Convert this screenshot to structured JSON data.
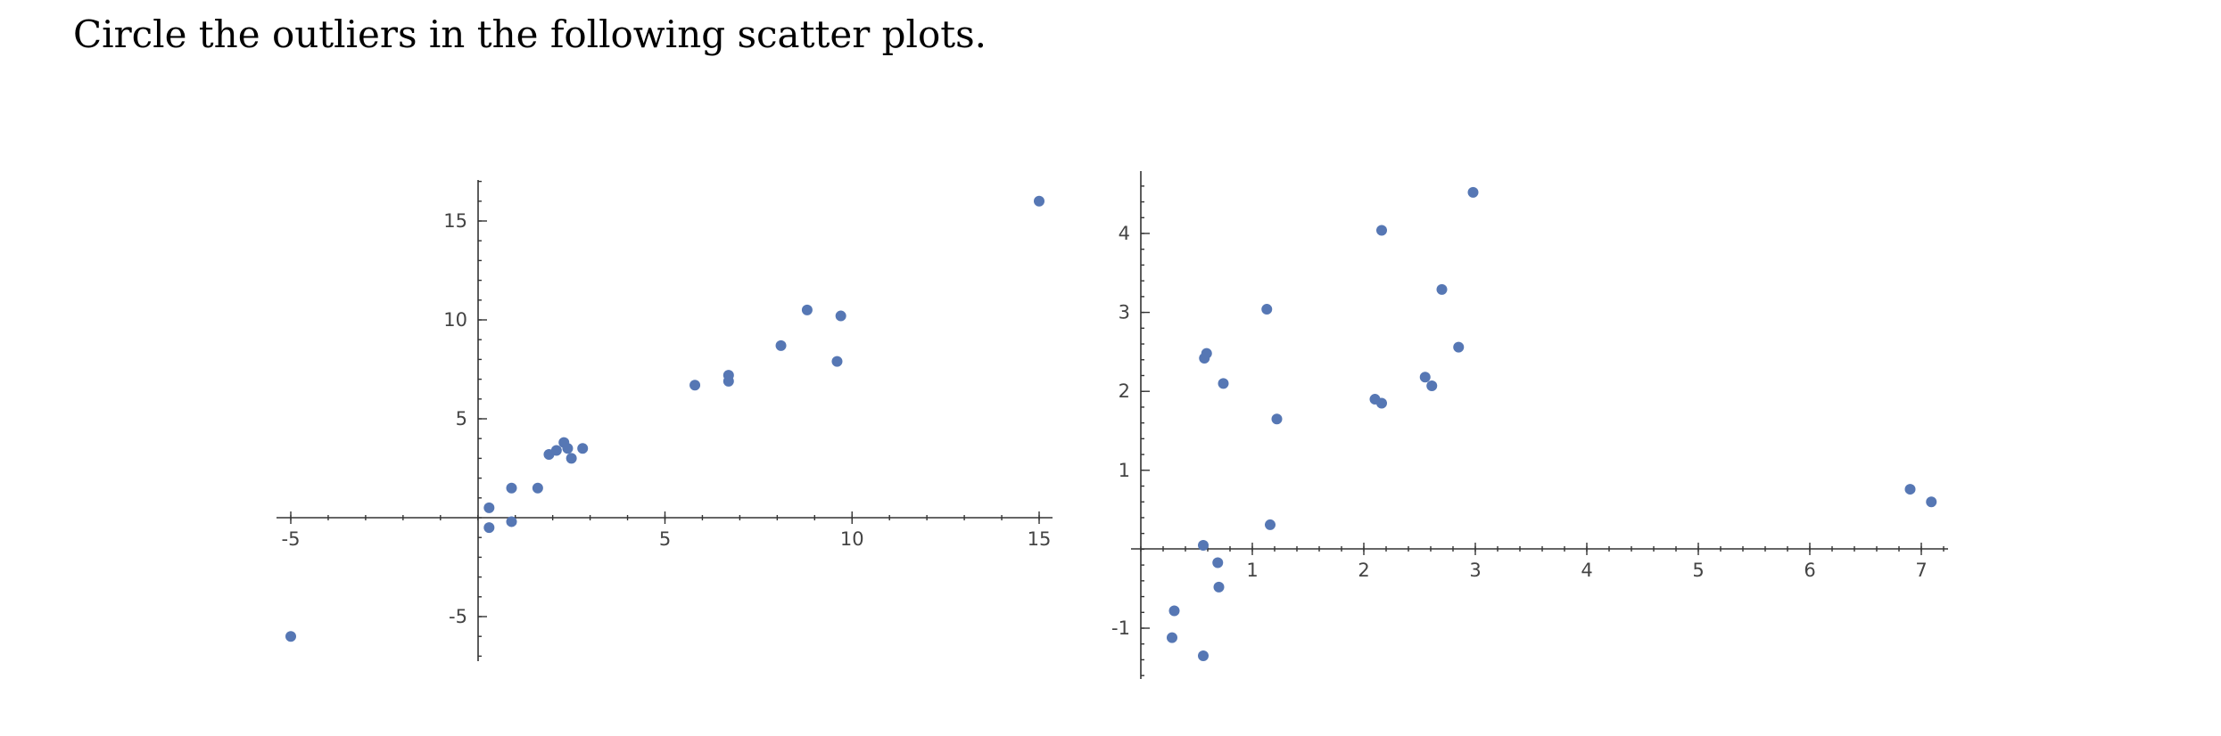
{
  "instruction": "Circle the outliers in the following scatter plots.",
  "colors": {
    "point": "#5677b4",
    "axis": "#333333",
    "label": "#444444"
  },
  "chart_data": [
    {
      "type": "scatter",
      "title": "",
      "xlabel": "",
      "ylabel": "",
      "xlim": [
        -5.2,
        15.4
      ],
      "ylim": [
        -7.2,
        17
      ],
      "xticks": [
        -5,
        5,
        10,
        15
      ],
      "yticks": [
        -5,
        5,
        10,
        15
      ],
      "xtick_labels": [
        "-5",
        "5",
        "10",
        "15"
      ],
      "ytick_labels": [
        "-5",
        "5",
        "10",
        "15"
      ],
      "grid": false,
      "points": [
        {
          "x": -5.0,
          "y": -6.0
        },
        {
          "x": 0.3,
          "y": 0.5
        },
        {
          "x": 0.3,
          "y": -0.5
        },
        {
          "x": 0.9,
          "y": 1.5
        },
        {
          "x": 0.9,
          "y": -0.2
        },
        {
          "x": 1.6,
          "y": 1.5
        },
        {
          "x": 1.9,
          "y": 3.2
        },
        {
          "x": 2.1,
          "y": 3.4
        },
        {
          "x": 2.3,
          "y": 3.8
        },
        {
          "x": 2.4,
          "y": 3.5
        },
        {
          "x": 2.5,
          "y": 3.0
        },
        {
          "x": 2.8,
          "y": 3.5
        },
        {
          "x": 5.8,
          "y": 6.7
        },
        {
          "x": 6.7,
          "y": 7.2
        },
        {
          "x": 6.7,
          "y": 6.9
        },
        {
          "x": 8.1,
          "y": 8.7
        },
        {
          "x": 8.8,
          "y": 10.5
        },
        {
          "x": 9.6,
          "y": 7.9
        },
        {
          "x": 9.7,
          "y": 10.2
        },
        {
          "x": 15.0,
          "y": 16.0
        }
      ]
    },
    {
      "type": "scatter",
      "title": "",
      "xlabel": "",
      "ylabel": "",
      "xlim": [
        0,
        7.25
      ],
      "ylim": [
        -1.65,
        4.8
      ],
      "xticks": [
        1,
        2,
        3,
        4,
        5,
        6,
        7
      ],
      "yticks": [
        -1,
        1,
        2,
        3,
        4
      ],
      "xtick_labels": [
        "1",
        "2",
        "3",
        "4",
        "5",
        "6",
        "7"
      ],
      "ytick_labels": [
        "-1",
        "1",
        "2",
        "3",
        "4"
      ],
      "grid": false,
      "points": [
        {
          "x": 0.3,
          "y": -0.78
        },
        {
          "x": 0.28,
          "y": -1.12
        },
        {
          "x": 0.56,
          "y": -1.35
        },
        {
          "x": 0.56,
          "y": 0.05
        },
        {
          "x": 0.69,
          "y": -0.17
        },
        {
          "x": 0.7,
          "y": -0.48
        },
        {
          "x": 0.57,
          "y": 2.42
        },
        {
          "x": 0.59,
          "y": 2.48
        },
        {
          "x": 0.74,
          "y": 2.1
        },
        {
          "x": 1.13,
          "y": 3.04
        },
        {
          "x": 1.16,
          "y": 0.31
        },
        {
          "x": 1.22,
          "y": 1.65
        },
        {
          "x": 2.1,
          "y": 1.9
        },
        {
          "x": 2.16,
          "y": 1.85
        },
        {
          "x": 2.16,
          "y": 4.04
        },
        {
          "x": 2.55,
          "y": 2.18
        },
        {
          "x": 2.61,
          "y": 2.07
        },
        {
          "x": 2.7,
          "y": 3.29
        },
        {
          "x": 2.85,
          "y": 2.56
        },
        {
          "x": 2.98,
          "y": 4.52
        },
        {
          "x": 6.9,
          "y": 0.76
        },
        {
          "x": 7.09,
          "y": 0.6
        }
      ]
    }
  ]
}
